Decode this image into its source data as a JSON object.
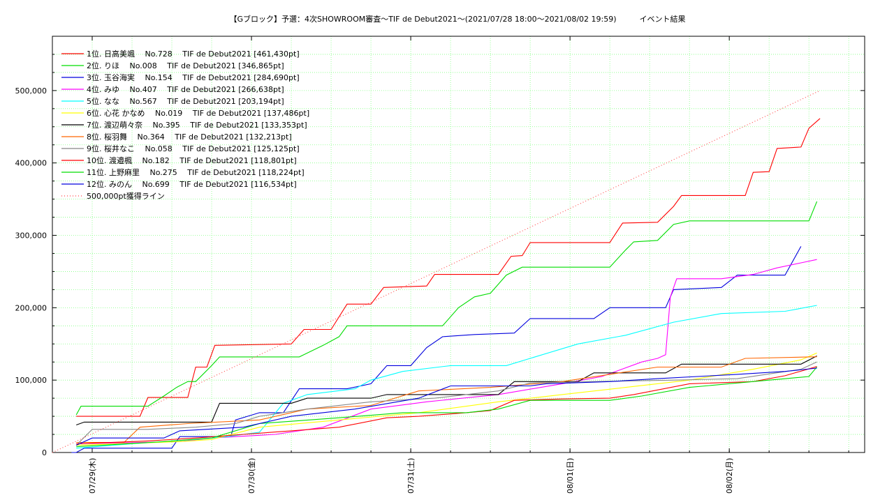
{
  "chart_data": {
    "type": "line",
    "title": "【Gブロック】予選：4次SHOWROOM審査～TIF de Debut2021～(2021/07/28 18:00～2021/08/02 19:59)　　　イベント結果",
    "xlabel": "",
    "ylabel": "",
    "x_unit": "days since 2021/07/28 18:00",
    "xlim": [
      0,
      5.1
    ],
    "ylim": [
      0,
      575000
    ],
    "y_ticks": [
      0,
      100000,
      200000,
      300000,
      400000,
      500000
    ],
    "y_tick_labels": [
      "0",
      "100,000",
      "200,000",
      "300,000",
      "400,000",
      "500,000"
    ],
    "x_ticks": [
      0.25,
      1.25,
      2.25,
      3.25,
      4.25
    ],
    "x_tick_labels": [
      "07/29(木)",
      "07/30(金)",
      "07/31(土)",
      "08/01(日)",
      "08/02(月)"
    ],
    "grid": true,
    "legend_position": "top-left",
    "series": [
      {
        "name": "1位. 日高美颯　 No.728　 TIF de Debut2021 [461,430pt]",
        "color": "#ff0000",
        "points": [
          [
            0.15,
            50000
          ],
          [
            0.55,
            50000
          ],
          [
            0.6,
            76000
          ],
          [
            0.85,
            76000
          ],
          [
            0.9,
            118000
          ],
          [
            0.97,
            118000
          ],
          [
            1.02,
            148000
          ],
          [
            1.5,
            150000
          ],
          [
            1.58,
            170000
          ],
          [
            1.75,
            170000
          ],
          [
            1.85,
            205000
          ],
          [
            2.0,
            205000
          ],
          [
            2.08,
            228000
          ],
          [
            2.35,
            230000
          ],
          [
            2.4,
            246000
          ],
          [
            2.8,
            246000
          ],
          [
            2.88,
            271000
          ],
          [
            2.95,
            272000
          ],
          [
            3.0,
            290000
          ],
          [
            3.5,
            290000
          ],
          [
            3.58,
            317000
          ],
          [
            3.8,
            318000
          ],
          [
            3.9,
            340000
          ],
          [
            3.95,
            355000
          ],
          [
            4.35,
            355000
          ],
          [
            4.4,
            387000
          ],
          [
            4.5,
            388000
          ],
          [
            4.55,
            420000
          ],
          [
            4.7,
            422000
          ],
          [
            4.75,
            448000
          ],
          [
            4.82,
            461430
          ]
        ]
      },
      {
        "name": "2位. りほ　 No.008　 TIF de Debut2021 [346,865pt]",
        "color": "#00dd00",
        "points": [
          [
            0.15,
            52000
          ],
          [
            0.18,
            64000
          ],
          [
            0.6,
            64000
          ],
          [
            0.7,
            78000
          ],
          [
            0.78,
            90000
          ],
          [
            0.85,
            98000
          ],
          [
            0.9,
            98000
          ],
          [
            1.0,
            120000
          ],
          [
            1.05,
            132000
          ],
          [
            1.55,
            132000
          ],
          [
            1.7,
            148000
          ],
          [
            1.8,
            160000
          ],
          [
            1.85,
            175000
          ],
          [
            2.45,
            175000
          ],
          [
            2.55,
            200000
          ],
          [
            2.65,
            215000
          ],
          [
            2.75,
            220000
          ],
          [
            2.85,
            245000
          ],
          [
            2.95,
            256000
          ],
          [
            3.5,
            256000
          ],
          [
            3.6,
            280000
          ],
          [
            3.65,
            291000
          ],
          [
            3.8,
            293000
          ],
          [
            3.9,
            315000
          ],
          [
            4.0,
            320000
          ],
          [
            4.75,
            320000
          ],
          [
            4.8,
            346865
          ]
        ]
      },
      {
        "name": "3位. 玉谷海実　 No.154　 TIF de Debut2021 [284,690pt]",
        "color": "#0000dd",
        "points": [
          [
            0.12,
            0
          ],
          [
            0.15,
            0
          ],
          [
            0.2,
            6000
          ],
          [
            0.75,
            6000
          ],
          [
            0.8,
            22000
          ],
          [
            1.12,
            22000
          ],
          [
            1.15,
            45000
          ],
          [
            1.3,
            55000
          ],
          [
            1.45,
            55000
          ],
          [
            1.55,
            88000
          ],
          [
            1.85,
            88000
          ],
          [
            2.0,
            95000
          ],
          [
            2.1,
            120000
          ],
          [
            2.25,
            120000
          ],
          [
            2.35,
            145000
          ],
          [
            2.45,
            160000
          ],
          [
            2.65,
            163000
          ],
          [
            2.9,
            165000
          ],
          [
            3.0,
            185000
          ],
          [
            3.4,
            185000
          ],
          [
            3.5,
            200000
          ],
          [
            3.85,
            200000
          ],
          [
            3.9,
            225000
          ],
          [
            4.2,
            228000
          ],
          [
            4.3,
            245000
          ],
          [
            4.6,
            245000
          ],
          [
            4.7,
            284690
          ]
        ]
      },
      {
        "name": "4位. みゆ　 No.407　 TIF de Debut2021 [266,638pt]",
        "color": "#ff00ff",
        "points": [
          [
            0.15,
            12000
          ],
          [
            0.8,
            15000
          ],
          [
            1.0,
            20000
          ],
          [
            1.4,
            25000
          ],
          [
            1.7,
            35000
          ],
          [
            2.0,
            60000
          ],
          [
            2.35,
            70000
          ],
          [
            2.8,
            80000
          ],
          [
            3.2,
            95000
          ],
          [
            3.45,
            105000
          ],
          [
            3.7,
            125000
          ],
          [
            3.8,
            130000
          ],
          [
            3.85,
            135000
          ],
          [
            3.88,
            215000
          ],
          [
            3.92,
            240000
          ],
          [
            4.2,
            240000
          ],
          [
            4.4,
            246000
          ],
          [
            4.55,
            255000
          ],
          [
            4.7,
            262000
          ],
          [
            4.8,
            266638
          ]
        ]
      },
      {
        "name": "5位. なな　 No.567　 TIF de Debut2021 [203,194pt]",
        "color": "#00ffff",
        "points": [
          [
            0.15,
            6000
          ],
          [
            0.5,
            12000
          ],
          [
            0.9,
            18000
          ],
          [
            1.1,
            22000
          ],
          [
            1.3,
            28000
          ],
          [
            1.45,
            68000
          ],
          [
            1.6,
            80000
          ],
          [
            1.9,
            88000
          ],
          [
            2.0,
            100000
          ],
          [
            2.2,
            112000
          ],
          [
            2.5,
            120000
          ],
          [
            2.85,
            120000
          ],
          [
            3.0,
            130000
          ],
          [
            3.3,
            150000
          ],
          [
            3.6,
            162000
          ],
          [
            3.9,
            180000
          ],
          [
            4.2,
            192000
          ],
          [
            4.6,
            195000
          ],
          [
            4.8,
            203194
          ]
        ]
      },
      {
        "name": "6位. 心花 かなめ　 No.019　 TIF de Debut2021 [137,486pt]",
        "color": "#ffff00",
        "points": [
          [
            0.15,
            10000
          ],
          [
            0.8,
            15000
          ],
          [
            1.0,
            18000
          ],
          [
            1.3,
            35000
          ],
          [
            1.8,
            45000
          ],
          [
            2.3,
            55000
          ],
          [
            2.8,
            70000
          ],
          [
            3.2,
            80000
          ],
          [
            3.6,
            90000
          ],
          [
            4.0,
            100000
          ],
          [
            4.4,
            115000
          ],
          [
            4.7,
            128000
          ],
          [
            4.8,
            137486
          ]
        ]
      },
      {
        "name": "7位. 渡辺萌々奈　 No.395　 TIF de Debut2021 [133,353pt]",
        "color": "#000000",
        "points": [
          [
            0.15,
            38000
          ],
          [
            0.2,
            42000
          ],
          [
            1.0,
            42000
          ],
          [
            1.05,
            68000
          ],
          [
            1.5,
            68000
          ],
          [
            1.6,
            75000
          ],
          [
            2.0,
            75000
          ],
          [
            2.1,
            80000
          ],
          [
            2.8,
            80000
          ],
          [
            2.9,
            98000
          ],
          [
            3.3,
            98000
          ],
          [
            3.4,
            110000
          ],
          [
            3.85,
            110000
          ],
          [
            3.95,
            122000
          ],
          [
            4.7,
            122000
          ],
          [
            4.8,
            133353
          ]
        ]
      },
      {
        "name": "8位. 桜羽舞　 No.364　 TIF de Debut2021 [132,213pt]",
        "color": "#ff6600",
        "points": [
          [
            0.15,
            14000
          ],
          [
            0.45,
            14000
          ],
          [
            0.55,
            35000
          ],
          [
            0.85,
            40000
          ],
          [
            1.3,
            45000
          ],
          [
            1.6,
            60000
          ],
          [
            2.0,
            65000
          ],
          [
            2.3,
            85000
          ],
          [
            2.75,
            90000
          ],
          [
            3.2,
            98000
          ],
          [
            3.5,
            108000
          ],
          [
            3.8,
            118000
          ],
          [
            4.2,
            118000
          ],
          [
            4.35,
            130000
          ],
          [
            4.8,
            132213
          ]
        ]
      },
      {
        "name": "9位. 桜井なこ　 No.058　 TIF de Debut2021 [125,125pt]",
        "color": "#888888",
        "points": [
          [
            0.15,
            10000
          ],
          [
            0.25,
            32000
          ],
          [
            0.6,
            32000
          ],
          [
            0.9,
            35000
          ],
          [
            1.15,
            40000
          ],
          [
            1.3,
            50000
          ],
          [
            1.6,
            60000
          ],
          [
            2.0,
            70000
          ],
          [
            2.4,
            75000
          ],
          [
            2.8,
            85000
          ],
          [
            3.0,
            96000
          ],
          [
            3.4,
            98000
          ],
          [
            3.9,
            100000
          ],
          [
            4.3,
            102000
          ],
          [
            4.7,
            115000
          ],
          [
            4.8,
            125125
          ]
        ]
      },
      {
        "name": "10位. 渡邉楓　 No.182　 TIF de Debut2021 [118,801pt]",
        "color": "#ff0000",
        "points": [
          [
            0.15,
            12000
          ],
          [
            0.6,
            16000
          ],
          [
            0.9,
            20000
          ],
          [
            1.2,
            25000
          ],
          [
            1.5,
            30000
          ],
          [
            1.8,
            35000
          ],
          [
            2.1,
            48000
          ],
          [
            2.3,
            50000
          ],
          [
            2.6,
            55000
          ],
          [
            2.75,
            58000
          ],
          [
            2.9,
            72000
          ],
          [
            3.2,
            74000
          ],
          [
            3.5,
            75000
          ],
          [
            3.65,
            80000
          ],
          [
            4.0,
            95000
          ],
          [
            4.4,
            98000
          ],
          [
            4.6,
            106000
          ],
          [
            4.8,
            118801
          ]
        ]
      },
      {
        "name": "11位. 上野麻里　 No.275　 TIF de Debut2021 [118,224pt]",
        "color": "#00dd00",
        "points": [
          [
            0.15,
            8000
          ],
          [
            0.7,
            15000
          ],
          [
            1.0,
            20000
          ],
          [
            1.3,
            40000
          ],
          [
            1.8,
            48000
          ],
          [
            2.2,
            55000
          ],
          [
            2.6,
            55000
          ],
          [
            2.8,
            60000
          ],
          [
            3.0,
            72000
          ],
          [
            3.5,
            72000
          ],
          [
            3.7,
            78000
          ],
          [
            4.0,
            90000
          ],
          [
            4.5,
            100000
          ],
          [
            4.75,
            105000
          ],
          [
            4.8,
            118224
          ]
        ]
      },
      {
        "name": "12位. みのん　 No.699　 TIF de Debut2021 [116,534pt]",
        "color": "#0000dd",
        "points": [
          [
            0.15,
            10000
          ],
          [
            0.25,
            20000
          ],
          [
            0.7,
            20000
          ],
          [
            0.8,
            30000
          ],
          [
            1.2,
            35000
          ],
          [
            1.5,
            50000
          ],
          [
            1.9,
            60000
          ],
          [
            2.3,
            75000
          ],
          [
            2.5,
            92000
          ],
          [
            3.0,
            92000
          ],
          [
            3.1,
            95000
          ],
          [
            3.5,
            98000
          ],
          [
            3.8,
            102000
          ],
          [
            4.3,
            108000
          ],
          [
            4.6,
            112000
          ],
          [
            4.8,
            116534
          ]
        ]
      },
      {
        "name": "500,000pt獲得ライン",
        "color": "#ff4444",
        "dotted": true,
        "points": [
          [
            0.0,
            0
          ],
          [
            4.82,
            500000
          ]
        ]
      }
    ]
  }
}
